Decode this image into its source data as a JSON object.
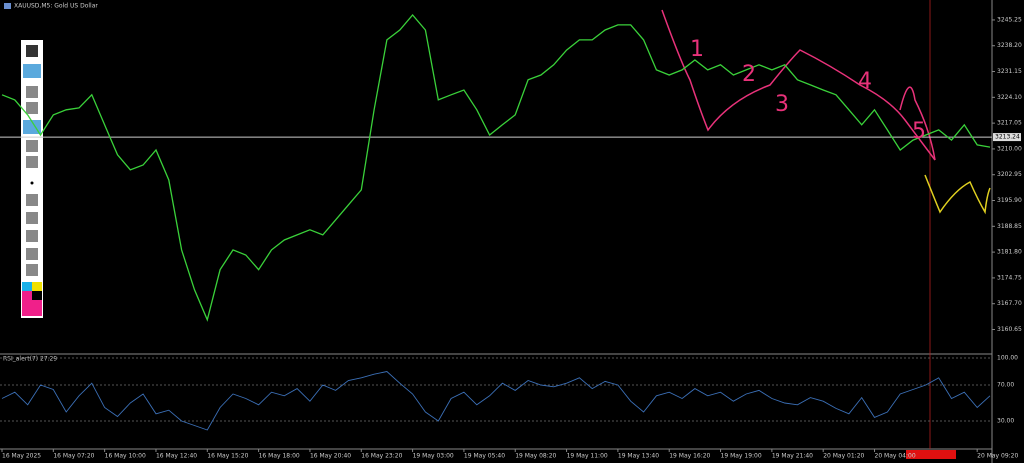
{
  "chart_data": {
    "type": "line",
    "title": "XAUUSD,M5:  Gold US Dollar",
    "series": [
      {
        "name": "XAUUSD",
        "color": "#3ad13a",
        "values": [
          3224.8,
          3223.4,
          3219.3,
          3213.8,
          3219.3,
          3220.7,
          3221.2,
          3224.8,
          3216.6,
          3208.4,
          3204.3,
          3205.6,
          3209.7,
          3201.5,
          3182.4,
          3171.5,
          3163.3,
          3177.0,
          3182.4,
          3181.0,
          3177.0,
          3182.4,
          3185.1,
          3186.5,
          3187.9,
          3186.5,
          3190.6,
          3194.7,
          3198.8,
          3220.7,
          3239.8,
          3242.5,
          3246.6,
          3242.5,
          3223.4,
          3224.8,
          3226.1,
          3220.7,
          3213.8,
          3216.6,
          3219.3,
          3228.9,
          3230.2,
          3233.0,
          3237.0,
          3239.8,
          3239.8,
          3242.5,
          3243.9,
          3243.9,
          3239.8,
          3231.6,
          3230.2,
          3231.6,
          3234.3,
          3231.6,
          3233.0,
          3230.2,
          3231.6,
          3233.0,
          3231.6,
          3233.0,
          3228.9,
          3227.5,
          3226.1,
          3224.8,
          3220.7,
          3216.6,
          3220.7,
          3215.2,
          3209.7,
          3212.4,
          3213.8,
          3215.2,
          3212.4,
          3216.6,
          3211.1,
          3210.5
        ]
      }
    ],
    "ylim": [
      3154.5,
      3250.7
    ],
    "yticks": [
      3245.25,
      {
        "value": 3238.2,
        "label": "3238.20"
      },
      3231.15,
      {
        "value": 3224.1,
        "label": "3224.10"
      },
      3217.05,
      {
        "value": 3210,
        "label": "3210.00"
      },
      3202.95,
      {
        "value": 3195.9,
        "label": "3195.90"
      },
      3188.85,
      {
        "value": 3181.8,
        "label": "3181.80"
      },
      3174.75,
      {
        "value": 3167.7,
        "label": "3167.70"
      },
      3160.65
    ],
    "last_price": 3213.24,
    "xticks": [
      {
        "value": 0,
        "label": "16 May 2025"
      },
      {
        "value": 4,
        "label": "16 May 07:20"
      },
      {
        "value": 8,
        "label": "16 May 10:00"
      },
      {
        "value": 12,
        "label": "16 May 12:40"
      },
      {
        "value": 16,
        "label": "16 May 15:20"
      },
      {
        "value": 20,
        "label": "16 May 18:00"
      },
      {
        "value": 24,
        "label": "16 May 20:40"
      },
      {
        "value": 28,
        "label": "16 May 23:20"
      },
      {
        "value": 32,
        "label": "19 May 03:00"
      },
      {
        "value": 36,
        "label": "19 May 05:40"
      },
      {
        "value": 40,
        "label": "19 May 08:20"
      },
      {
        "value": 44,
        "label": "19 May 11:00"
      },
      {
        "value": 48,
        "label": "19 May 13:40"
      },
      {
        "value": 52,
        "label": "19 May 16:20"
      },
      {
        "value": 56,
        "label": "19 May 19:00"
      },
      {
        "value": 60,
        "label": "19 May 21:40"
      },
      {
        "value": 64,
        "label": "20 May 01:20"
      },
      {
        "value": 68,
        "label": "20 May 04:00"
      },
      {
        "value": 76,
        "label": "20 May 09:20"
      }
    ],
    "annotations": [
      "1",
      "2",
      "3",
      "4",
      "5"
    ],
    "indicator": {
      "title": "RSI_alert(7) 27.29",
      "color": "#3b6fb6",
      "ylim": [
        0,
        100
      ],
      "yticks": [
        {
          "value": 100,
          "label": "100.00"
        },
        {
          "value": 70,
          "label": "70.00"
        },
        {
          "value": 30,
          "label": "30.00"
        }
      ],
      "values": [
        55,
        62,
        48,
        70,
        65,
        40,
        58,
        72,
        45,
        35,
        50,
        60,
        38,
        42,
        30,
        25,
        20,
        45,
        60,
        55,
        48,
        62,
        58,
        66,
        52,
        70,
        64,
        75,
        78,
        82,
        85,
        72,
        60,
        40,
        30,
        55,
        62,
        48,
        58,
        72,
        64,
        75,
        70,
        68,
        72,
        78,
        66,
        74,
        70,
        52,
        40,
        58,
        62,
        55,
        66,
        58,
        62,
        52,
        60,
        64,
        55,
        50,
        48,
        56,
        52,
        44,
        38,
        56,
        34,
        40,
        60,
        65,
        70,
        78,
        55,
        62,
        45,
        58
      ]
    }
  }
}
